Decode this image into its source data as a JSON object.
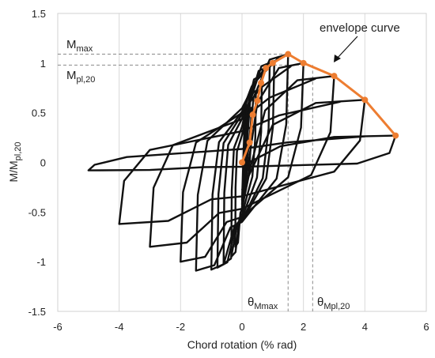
{
  "chart_data": {
    "type": "line",
    "xlabel": "Chord rotation (% rad)",
    "ylabel": {
      "main": "M/M",
      "sub": "pl,20"
    },
    "xlim": [
      -6,
      6
    ],
    "ylim": [
      -1.5,
      1.5
    ],
    "x_ticks": [
      -6,
      -4,
      -2,
      0,
      2,
      4,
      6
    ],
    "y_ticks": [
      -1.5,
      -1,
      -0.5,
      0,
      0.5,
      1,
      1.5
    ],
    "x_tick_labels": [
      "-6",
      "-4",
      "-2",
      "0",
      "2",
      "4",
      "6"
    ],
    "y_tick_labels": [
      "-1.5",
      "-1",
      "-0.5",
      "0",
      "0.5",
      "1",
      "1.5"
    ],
    "grid": "vertical",
    "envelope_color": "#ED7D31",
    "hysteresis_color": "#111111",
    "envelope": {
      "x": [
        0.0,
        0.25,
        0.35,
        0.5,
        0.62,
        0.78,
        1.0,
        1.5,
        2.0,
        3.0,
        4.0,
        5.0
      ],
      "y": [
        0.0,
        0.2,
        0.48,
        0.62,
        0.8,
        0.95,
        1.0,
        1.09,
        1.0,
        0.87,
        0.63,
        0.27
      ]
    },
    "hysteresis_cycles": [
      {
        "min": -0.22,
        "max": 0.3,
        "peak_pos": 0.55,
        "peak_neg": -0.85
      },
      {
        "min": -0.35,
        "max": 0.45,
        "peak_pos": 0.72,
        "peak_neg": -0.95
      },
      {
        "min": -0.6,
        "max": 0.65,
        "peak_pos": 0.88,
        "peak_neg": -1.02
      },
      {
        "min": -0.8,
        "max": 0.9,
        "peak_pos": 0.97,
        "peak_neg": -1.06
      },
      {
        "min": -1.0,
        "max": 1.05,
        "peak_pos": 1.02,
        "peak_neg": -1.08
      },
      {
        "min": -1.5,
        "max": 1.5,
        "peak_pos": 1.09,
        "peak_neg": -1.09
      },
      {
        "min": -2.0,
        "max": 2.0,
        "peak_pos": 1.0,
        "peak_neg": -1.0
      },
      {
        "min": -3.0,
        "max": 3.0,
        "peak_pos": 0.87,
        "peak_neg": -0.85
      },
      {
        "min": -4.0,
        "max": 4.0,
        "peak_pos": 0.63,
        "peak_neg": -0.62
      },
      {
        "min": -5.0,
        "max": 5.0,
        "peak_pos": 0.27,
        "peak_neg": -0.08
      }
    ],
    "reference_lines": {
      "m_max": 1.09,
      "m_pl20": 0.98,
      "theta_mmax": 1.5,
      "theta_mpl20": 2.3
    },
    "annotations": {
      "envelope_label": "envelope curve",
      "m_max_label": {
        "main": "M",
        "sub": "max"
      },
      "m_pl20_label": {
        "main": "M",
        "sub": "pl,20"
      },
      "theta_mmax_label": {
        "main": "θ",
        "sub": "Mmax"
      },
      "theta_mpl20_label": {
        "main": "θ",
        "sub": "Mpl,20"
      }
    }
  }
}
